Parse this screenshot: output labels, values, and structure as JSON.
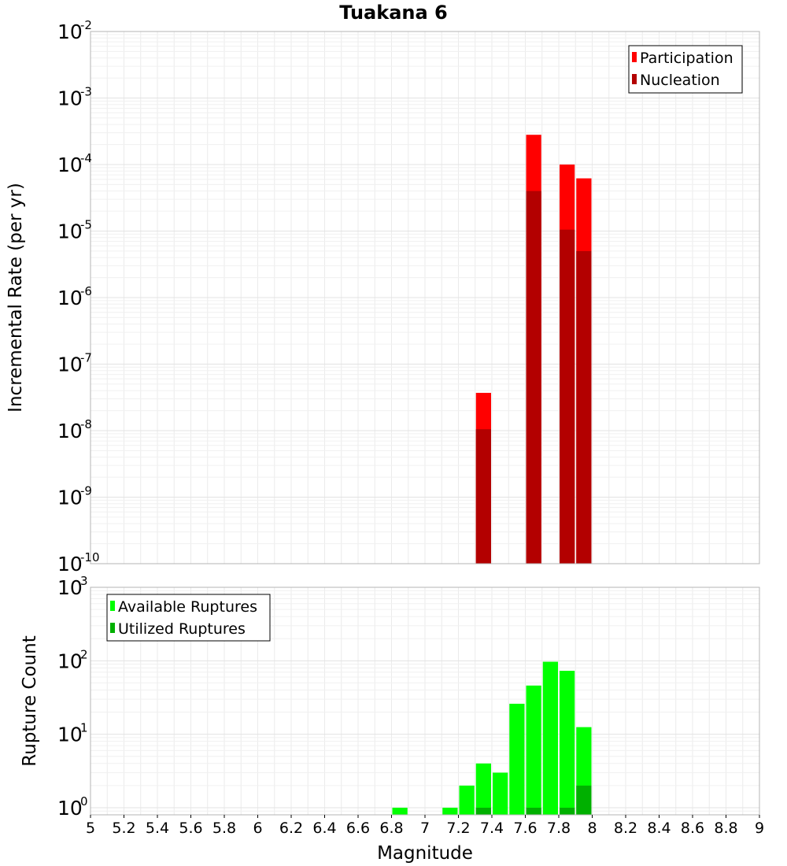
{
  "chart_data": [
    {
      "type": "bar",
      "title": "Tuakana 6",
      "xlabel": "",
      "ylabel": "Incremental Rate (per yr)",
      "y_scale": "log",
      "ylim": [
        1e-10,
        0.01
      ],
      "xlim": [
        5,
        9
      ],
      "grid": true,
      "legend_placement": "top-right",
      "series": [
        {
          "name": "Participation",
          "color": "#ff0000",
          "points": [
            {
              "x": 7.35,
              "y": 3.7e-08
            },
            {
              "x": 7.65,
              "y": 0.00028
            },
            {
              "x": 7.85,
              "y": 0.0001
            },
            {
              "x": 7.95,
              "y": 6.2e-05
            }
          ]
        },
        {
          "name": "Nucleation",
          "color": "#b30000",
          "points": [
            {
              "x": 7.35,
              "y": 1.05e-08
            },
            {
              "x": 7.65,
              "y": 4e-05
            },
            {
              "x": 7.85,
              "y": 1.05e-05
            },
            {
              "x": 7.95,
              "y": 5e-06
            }
          ]
        }
      ]
    },
    {
      "type": "bar",
      "title": "",
      "xlabel": "Magnitude",
      "ylabel": "Rupture Count",
      "y_scale": "log",
      "ylim": [
        0.8,
        1000
      ],
      "xlim": [
        5,
        9
      ],
      "grid": true,
      "legend_placement": "top-left",
      "series": [
        {
          "name": "Available Ruptures",
          "color": "#00ff00",
          "points": [
            {
              "x": 6.85,
              "y": 1
            },
            {
              "x": 7.15,
              "y": 1
            },
            {
              "x": 7.25,
              "y": 2
            },
            {
              "x": 7.35,
              "y": 4
            },
            {
              "x": 7.45,
              "y": 3
            },
            {
              "x": 7.55,
              "y": 26
            },
            {
              "x": 7.65,
              "y": 46
            },
            {
              "x": 7.75,
              "y": 97
            },
            {
              "x": 7.85,
              "y": 73
            },
            {
              "x": 7.95,
              "y": 12.5
            }
          ]
        },
        {
          "name": "Utilized Ruptures",
          "color": "#00b000",
          "points": [
            {
              "x": 7.35,
              "y": 1
            },
            {
              "x": 7.65,
              "y": 1
            },
            {
              "x": 7.85,
              "y": 1
            },
            {
              "x": 7.95,
              "y": 2
            }
          ]
        }
      ]
    }
  ],
  "x_ticks": [
    "5",
    "5.2",
    "5.4",
    "5.6",
    "5.8",
    "6",
    "6.2",
    "6.4",
    "6.6",
    "6.8",
    "7",
    "7.2",
    "7.4",
    "7.6",
    "7.8",
    "8",
    "8.2",
    "8.4",
    "8.6",
    "8.8",
    "9"
  ],
  "top_y_ticks": [
    {
      "base": "10",
      "exp": "-2",
      "v": -2
    },
    {
      "base": "10",
      "exp": "-3",
      "v": -3
    },
    {
      "base": "10",
      "exp": "-4",
      "v": -4
    },
    {
      "base": "10",
      "exp": "-5",
      "v": -5
    },
    {
      "base": "10",
      "exp": "-6",
      "v": -6
    },
    {
      "base": "10",
      "exp": "-7",
      "v": -7
    },
    {
      "base": "10",
      "exp": "-8",
      "v": -8
    },
    {
      "base": "10",
      "exp": "-9",
      "v": -9
    },
    {
      "base": "10",
      "exp": "-10",
      "v": -10
    }
  ],
  "bottom_y_ticks": [
    {
      "base": "10",
      "exp": "3",
      "v": 3
    },
    {
      "base": "10",
      "exp": "2",
      "v": 2
    },
    {
      "base": "10",
      "exp": "1",
      "v": 1
    },
    {
      "base": "10",
      "exp": "0",
      "v": 0
    }
  ]
}
